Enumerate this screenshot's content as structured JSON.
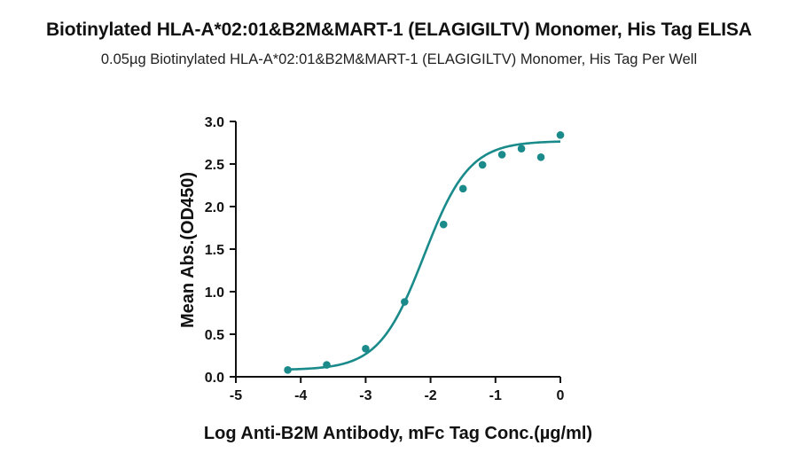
{
  "header": {
    "title": "Biotinylated HLA-A*02:01&B2M&MART-1 (ELAGIGILTV) Monomer, His Tag ELISA",
    "subtitle": "0.05µg Biotinylated HLA-A*02:01&B2M&MART-1 (ELAGIGILTV) Monomer, His Tag Per Well"
  },
  "colors": {
    "series": "#1a8a8a",
    "axis": "#111111"
  },
  "chart_data": {
    "type": "scatter",
    "title": "Biotinylated HLA-A*02:01&B2M&MART-1 (ELAGIGILTV) Monomer, His Tag ELISA",
    "subtitle": "0.05µg Biotinylated HLA-A*02:01&B2M&MART-1 (ELAGIGILTV) Monomer, His Tag Per Well",
    "xlabel": "Log  Anti-B2M Antibody, mFc Tag Conc.(µg/ml)",
    "ylabel": "Mean Abs.(OD450)",
    "xlim": [
      -5,
      0
    ],
    "ylim": [
      0,
      3.0
    ],
    "xticks": [
      "-5",
      "-4",
      "-3",
      "-2",
      "-1",
      "0"
    ],
    "yticks": [
      "0.0",
      "0.5",
      "1.0",
      "1.5",
      "2.0",
      "2.5",
      "3.0"
    ],
    "grid": false,
    "series": [
      {
        "x": [
          -4.2,
          -3.6,
          -3.0,
          -2.4,
          -1.8,
          -1.5,
          -1.2,
          -0.9,
          -0.6,
          -0.3,
          0.0
        ],
        "y": [
          0.08,
          0.14,
          0.33,
          0.88,
          1.79,
          2.21,
          2.49,
          2.61,
          2.68,
          2.58,
          2.84
        ]
      }
    ],
    "fit": {
      "model": "4PL",
      "bottom": 0.08,
      "top": 2.77,
      "logEC50": -2.1,
      "hill": 1.25
    }
  }
}
